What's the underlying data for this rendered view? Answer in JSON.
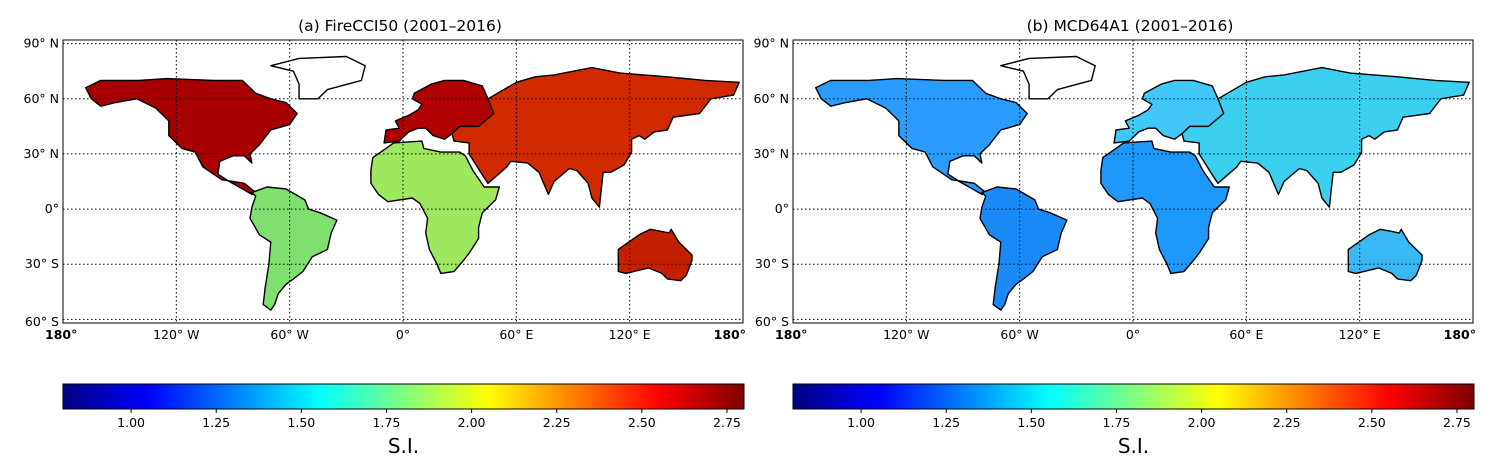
{
  "panels": [
    {
      "id": "a",
      "letter": "(a)",
      "title": "FireCCI50 (2001–2016)",
      "colorbar_label": "S.I.",
      "theme": "hot",
      "colors": {
        "NA": "#a80000",
        "SA": "#7fe070",
        "AF": "#9ee860",
        "EU": "#b00000",
        "AS": "#d22a00",
        "AU": "#c42000",
        "GR": "#ffffff"
      }
    },
    {
      "id": "b",
      "letter": "(b)",
      "title": "MCD64A1 (2001–2016)",
      "colorbar_label": "S.I.",
      "theme": "cool",
      "colors": {
        "NA": "#2a9cff",
        "SA": "#1a8af8",
        "AF": "#1e98fa",
        "EU": "#40c8f8",
        "AS": "#3cd0f0",
        "AU": "#3ab8f4",
        "GR": "#ffffff"
      }
    }
  ],
  "lat_ticks": [
    "90° N",
    "60° N",
    "30° N",
    "0°",
    "30° S",
    "60° S"
  ],
  "lat_values": [
    90,
    60,
    30,
    0,
    -30,
    -60
  ],
  "lon_ticks": [
    "180°",
    "120° W",
    "60° W",
    "0°",
    "60° E",
    "120° E",
    "180°"
  ],
  "lon_values": [
    -180,
    -120,
    -60,
    0,
    60,
    120,
    180
  ],
  "colorbar": {
    "range": [
      0.8,
      2.8
    ],
    "ticks": [
      "1.00",
      "1.25",
      "1.50",
      "1.75",
      "2.00",
      "2.25",
      "2.50",
      "2.75"
    ],
    "tick_values": [
      1.0,
      1.25,
      1.5,
      1.75,
      2.0,
      2.25,
      2.5,
      2.75
    ],
    "colormap": "jet",
    "stops": [
      "#00007f",
      "#0000ff",
      "#007fff",
      "#00ffff",
      "#7fff7f",
      "#ffff00",
      "#ff7f00",
      "#ff0000",
      "#7f0000"
    ]
  }
}
